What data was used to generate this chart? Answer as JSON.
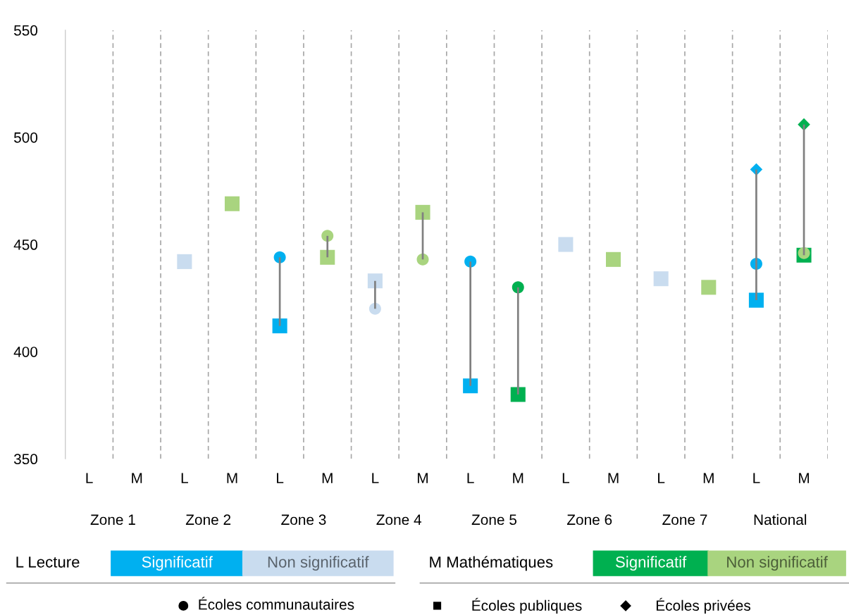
{
  "chart_data": {
    "type": "scatter",
    "categories": [
      "L",
      "M",
      "L",
      "M",
      "L",
      "M",
      "L",
      "M",
      "L",
      "M",
      "L",
      "M",
      "L",
      "M",
      "L",
      "M"
    ],
    "ylim": [
      350,
      550
    ],
    "yticks": [
      350,
      400,
      450,
      500,
      550
    ],
    "series": [
      {
        "type": "bar",
        "color": "#808080",
        "base": [
          null,
          null,
          null,
          null,
          412,
          444,
          420,
          443,
          384,
          380,
          null,
          null,
          null,
          null,
          424,
          445
        ],
        "values": [
          null,
          null,
          null,
          null,
          32,
          10,
          13,
          22,
          58,
          50,
          null,
          null,
          null,
          null,
          61,
          61
        ]
      },
      {
        "name": "Significatif",
        "marker": "circle",
        "color": "#00b0f0",
        "values": [
          null,
          null,
          null,
          null,
          444,
          null,
          null,
          null,
          442,
          null,
          null,
          null,
          null,
          null,
          441,
          null
        ]
      },
      {
        "name": "Non significatif",
        "marker": "circle",
        "color": "#c9dcef",
        "values": [
          null,
          null,
          null,
          null,
          null,
          null,
          420,
          null,
          null,
          null,
          null,
          null,
          null,
          null,
          null,
          null
        ]
      },
      {
        "name": "Significatif",
        "marker": "circle",
        "color": "#00b050",
        "values": [
          null,
          null,
          null,
          null,
          null,
          null,
          null,
          null,
          null,
          430,
          null,
          null,
          null,
          null,
          null,
          null
        ]
      },
      {
        "name": "Non significatif",
        "marker": "circle",
        "color": "#a9d47f",
        "values": [
          null,
          null,
          null,
          null,
          null,
          454,
          null,
          443,
          null,
          null,
          null,
          null,
          null,
          null,
          null,
          446
        ]
      },
      {
        "marker": "square",
        "color": "#00b0f0",
        "values": [
          null,
          null,
          null,
          null,
          412,
          null,
          null,
          null,
          384,
          null,
          null,
          null,
          null,
          null,
          424,
          null
        ]
      },
      {
        "marker": "square",
        "color": "#c9dcef",
        "values": [
          null,
          null,
          442,
          null,
          null,
          null,
          433,
          null,
          null,
          null,
          450,
          null,
          434,
          null,
          null,
          null
        ]
      },
      {
        "marker": "square",
        "color": "#00b050",
        "values": [
          null,
          null,
          null,
          null,
          null,
          null,
          null,
          null,
          null,
          380,
          null,
          null,
          null,
          null,
          null,
          445
        ]
      },
      {
        "marker": "square",
        "color": "#a9d47f",
        "values": [
          null,
          null,
          null,
          469,
          null,
          444,
          null,
          465,
          null,
          null,
          null,
          443,
          null,
          430,
          null,
          null
        ]
      },
      {
        "marker": "diamond",
        "color": "#00b0f0",
        "values": [
          null,
          null,
          null,
          null,
          null,
          null,
          null,
          null,
          null,
          null,
          null,
          null,
          null,
          null,
          485,
          null
        ]
      },
      {
        "marker": "diamond",
        "color": "#00b050",
        "values": [
          null,
          null,
          null,
          null,
          null,
          null,
          null,
          null,
          null,
          null,
          null,
          null,
          null,
          null,
          null,
          506
        ]
      }
    ],
    "grid": "x",
    "annotations": [
      "Zone 1",
      "Zone 2",
      "Zone 3",
      "Zone 4",
      "Zone 5",
      "Zone 6",
      "Zone 7",
      "National",
      "L Lecture",
      "M Mathématiques",
      "Écoles communautaires",
      "Écoles publiques",
      "Écoles privées"
    ],
    "legend": "bottom"
  }
}
